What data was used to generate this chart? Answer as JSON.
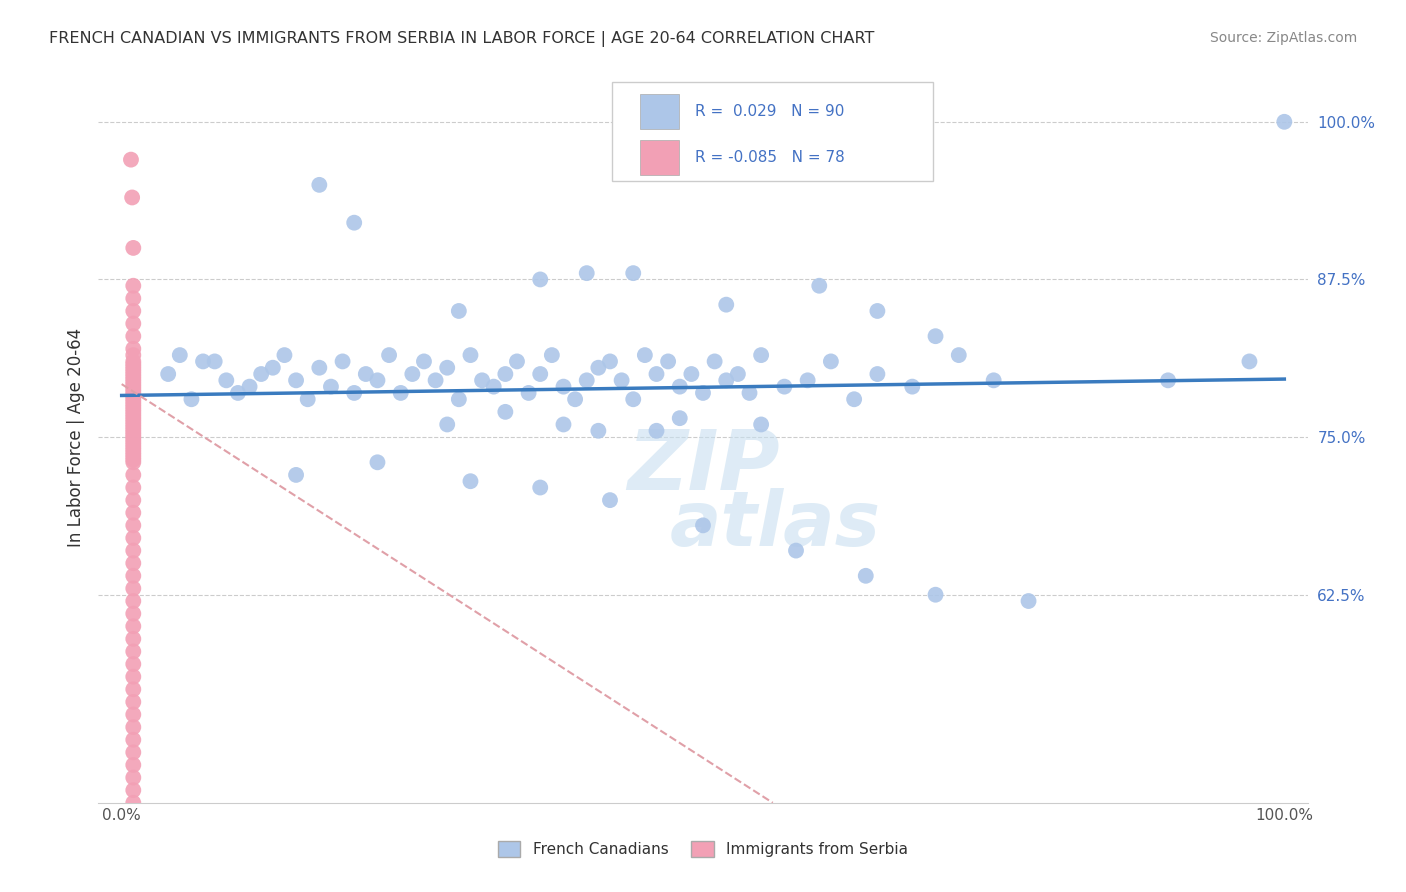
{
  "title": "FRENCH CANADIAN VS IMMIGRANTS FROM SERBIA IN LABOR FORCE | AGE 20-64 CORRELATION CHART",
  "source": "Source: ZipAtlas.com",
  "ylabel": "In Labor Force | Age 20-64",
  "xlim": [
    -0.02,
    1.02
  ],
  "ylim": [
    0.46,
    1.04
  ],
  "ytick_right_values": [
    0.625,
    0.75,
    0.875,
    1.0
  ],
  "ytick_right_labels": [
    "62.5%",
    "75.0%",
    "87.5%",
    "100.0%"
  ],
  "label1": "French Canadians",
  "label2": "Immigrants from Serbia",
  "color1": "#adc6e8",
  "color2": "#f2a0b5",
  "line_color1": "#3a7bbf",
  "line_color2": "#e08090",
  "blue_trend_x0": 0.0,
  "blue_trend_y0": 0.783,
  "blue_trend_x1": 1.0,
  "blue_trend_y1": 0.796,
  "pink_trend_x0": 0.0,
  "pink_trend_y0": 0.792,
  "pink_trend_x1": 0.56,
  "pink_trend_y1": 0.46,
  "watermark_color": "#c8dff0",
  "blue_x": [
    0.04,
    0.07,
    0.11,
    0.13,
    0.05,
    0.09,
    0.06,
    0.08,
    0.12,
    0.1,
    0.14,
    0.15,
    0.17,
    0.16,
    0.18,
    0.19,
    0.21,
    0.2,
    0.22,
    0.23,
    0.25,
    0.24,
    0.26,
    0.27,
    0.29,
    0.28,
    0.31,
    0.3,
    0.32,
    0.33,
    0.35,
    0.34,
    0.36,
    0.37,
    0.38,
    0.4,
    0.39,
    0.41,
    0.42,
    0.43,
    0.44,
    0.46,
    0.45,
    0.48,
    0.47,
    0.5,
    0.49,
    0.52,
    0.51,
    0.54,
    0.53,
    0.55,
    0.57,
    0.59,
    0.61,
    0.63,
    0.65,
    0.68,
    0.72,
    0.75,
    0.9,
    0.97,
    1.0,
    0.38,
    0.33,
    0.46,
    0.28,
    0.41,
    0.55,
    0.48,
    0.15,
    0.22,
    0.3,
    0.36,
    0.42,
    0.5,
    0.58,
    0.64,
    0.7,
    0.78,
    0.6,
    0.65,
    0.7,
    0.44,
    0.52,
    0.36,
    0.29,
    0.4,
    0.2,
    0.17
  ],
  "blue_y": [
    0.8,
    0.81,
    0.79,
    0.805,
    0.815,
    0.795,
    0.78,
    0.81,
    0.8,
    0.785,
    0.815,
    0.795,
    0.805,
    0.78,
    0.79,
    0.81,
    0.8,
    0.785,
    0.795,
    0.815,
    0.8,
    0.785,
    0.81,
    0.795,
    0.78,
    0.805,
    0.795,
    0.815,
    0.79,
    0.8,
    0.785,
    0.81,
    0.8,
    0.815,
    0.79,
    0.795,
    0.78,
    0.805,
    0.81,
    0.795,
    0.78,
    0.8,
    0.815,
    0.79,
    0.81,
    0.785,
    0.8,
    0.795,
    0.81,
    0.785,
    0.8,
    0.815,
    0.79,
    0.795,
    0.81,
    0.78,
    0.8,
    0.79,
    0.815,
    0.795,
    0.795,
    0.81,
    1.0,
    0.76,
    0.77,
    0.755,
    0.76,
    0.755,
    0.76,
    0.765,
    0.72,
    0.73,
    0.715,
    0.71,
    0.7,
    0.68,
    0.66,
    0.64,
    0.625,
    0.62,
    0.87,
    0.85,
    0.83,
    0.88,
    0.855,
    0.875,
    0.85,
    0.88,
    0.92,
    0.95
  ],
  "pink_x": [
    0.008,
    0.009,
    0.01,
    0.01,
    0.01,
    0.01,
    0.01,
    0.01,
    0.01,
    0.01,
    0.01,
    0.01,
    0.01,
    0.01,
    0.01,
    0.01,
    0.01,
    0.01,
    0.01,
    0.01,
    0.01,
    0.01,
    0.01,
    0.01,
    0.01,
    0.01,
    0.01,
    0.01,
    0.01,
    0.01,
    0.01,
    0.01,
    0.01,
    0.01,
    0.01,
    0.01,
    0.01,
    0.01,
    0.01,
    0.01,
    0.01,
    0.01,
    0.01,
    0.01,
    0.01,
    0.01,
    0.01,
    0.01,
    0.01,
    0.01,
    0.01,
    0.01,
    0.01,
    0.01,
    0.01,
    0.01,
    0.01,
    0.01,
    0.01,
    0.01,
    0.01,
    0.01,
    0.01,
    0.01,
    0.01,
    0.01,
    0.01,
    0.01,
    0.01,
    0.01,
    0.01,
    0.01,
    0.01,
    0.01,
    0.01,
    0.01,
    0.01,
    0.01
  ],
  "pink_y": [
    0.97,
    0.94,
    0.9,
    0.87,
    0.86,
    0.85,
    0.84,
    0.83,
    0.82,
    0.815,
    0.81,
    0.808,
    0.806,
    0.804,
    0.802,
    0.8,
    0.798,
    0.796,
    0.794,
    0.792,
    0.79,
    0.788,
    0.786,
    0.784,
    0.782,
    0.78,
    0.778,
    0.776,
    0.774,
    0.772,
    0.77,
    0.768,
    0.766,
    0.764,
    0.762,
    0.76,
    0.758,
    0.756,
    0.754,
    0.752,
    0.75,
    0.748,
    0.746,
    0.744,
    0.742,
    0.74,
    0.738,
    0.736,
    0.734,
    0.732,
    0.73,
    0.72,
    0.71,
    0.7,
    0.69,
    0.68,
    0.67,
    0.66,
    0.65,
    0.64,
    0.63,
    0.62,
    0.61,
    0.6,
    0.59,
    0.58,
    0.57,
    0.56,
    0.55,
    0.54,
    0.53,
    0.52,
    0.51,
    0.5,
    0.49,
    0.48,
    0.47,
    0.46
  ]
}
